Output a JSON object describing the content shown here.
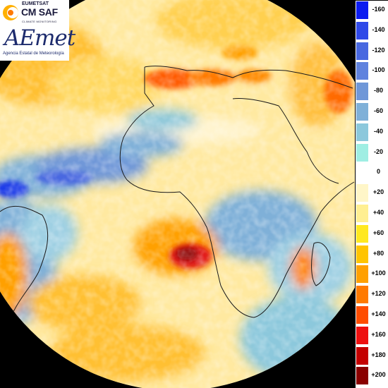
{
  "logos": {
    "eumetsat": "EUMETSAT",
    "cmsaf": "CM SAF",
    "cmsaf_subtitle": "CLIMATE MONITORING",
    "aemet": "AEmet",
    "aemet_subtitle": "Agencia Estatal de Meteorología"
  },
  "colorbar": {
    "labels": [
      "-160",
      "-140",
      "-120",
      "-100",
      "-80",
      "-60",
      "-40",
      "-20",
      "0",
      "+20",
      "+40",
      "+60",
      "+80",
      "+100",
      "+120",
      "+140",
      "+160",
      "+180",
      "+200"
    ],
    "colors": [
      "#0b1cf0",
      "#2f49e8",
      "#4868e0",
      "#5f82de",
      "#6f97d8",
      "#7fb0d8",
      "#8cc8dc",
      "#9feee3",
      "#ffffff",
      "#fff6c8",
      "#ffef92",
      "#ffe820",
      "#ffc400",
      "#ffa000",
      "#ff7a00",
      "#ff4d00",
      "#ee1010",
      "#c40000",
      "#8a0000"
    ]
  },
  "map": {
    "background": "#000000",
    "coastline_color": "#1a1a1a"
  }
}
